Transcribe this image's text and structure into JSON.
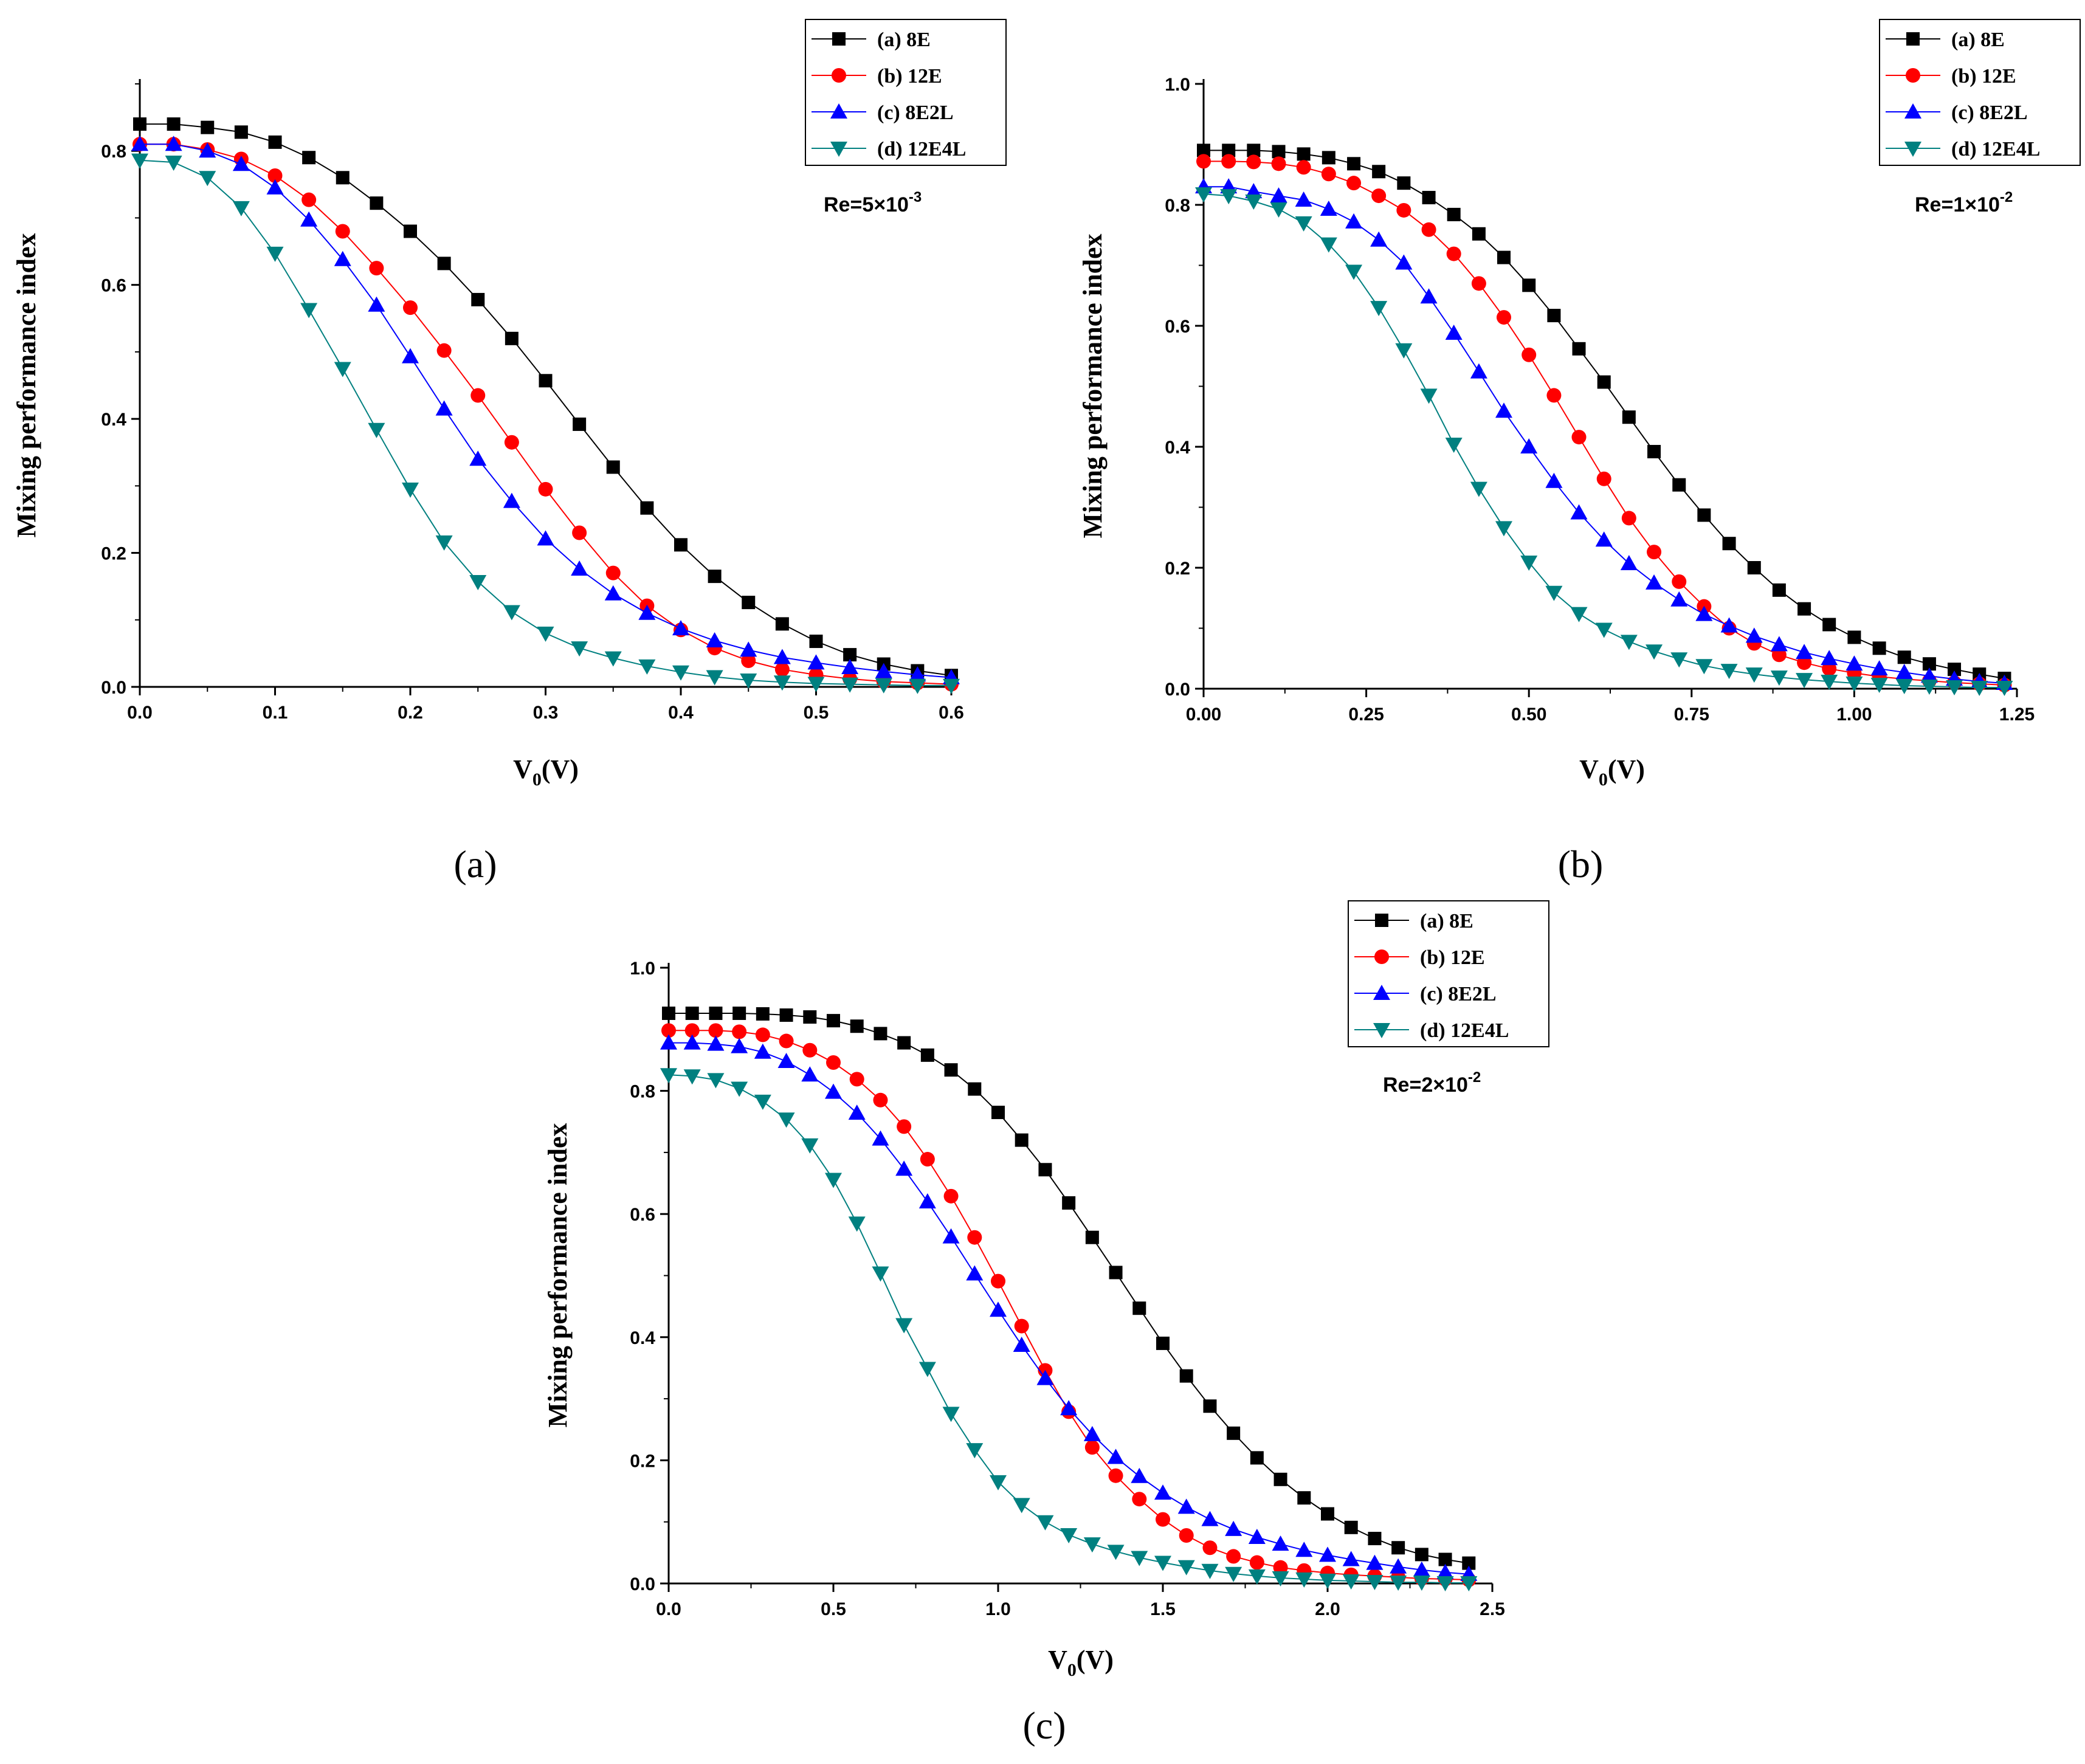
{
  "chart_data": [
    {
      "type": "scatter",
      "panel_label": "(a)",
      "annotation": {
        "prefix": "Re=5",
        "times": "×",
        "base": "10",
        "exponent": "-3"
      },
      "xlabel": {
        "main": "V",
        "sub": "0",
        "unit": "(V)"
      },
      "ylabel": "Mixing performance index",
      "xlim": [
        0,
        0.6
      ],
      "ylim": [
        0,
        0.9
      ],
      "xticks": [
        0,
        0.1,
        0.2,
        0.3,
        0.4,
        0.5,
        0.6
      ],
      "xtick_labels": [
        "0.0",
        "0.1",
        "0.2",
        "0.3",
        "0.4",
        "0.5",
        "0.6"
      ],
      "yticks": [
        0,
        0.2,
        0.4,
        0.6,
        0.8
      ],
      "ytick_labels": [
        "0.0",
        "0.2",
        "0.4",
        "0.6",
        "0.8"
      ],
      "legend_position": "top-right",
      "grid": false,
      "x": [
        0,
        0.025,
        0.05,
        0.075,
        0.1,
        0.125,
        0.15,
        0.175,
        0.2,
        0.225,
        0.25,
        0.275,
        0.3,
        0.325,
        0.35,
        0.375,
        0.4,
        0.425,
        0.45,
        0.475,
        0.5,
        0.525,
        0.55,
        0.575,
        0.6
      ],
      "series": [
        {
          "name": "(a) 8E",
          "color": "#000000",
          "marker": "square",
          "values": [
            0.84,
            0.84,
            0.835,
            0.828,
            0.813,
            0.79,
            0.76,
            0.722,
            0.68,
            0.632,
            0.578,
            0.52,
            0.457,
            0.392,
            0.328,
            0.267,
            0.212,
            0.165,
            0.126,
            0.094,
            0.068,
            0.048,
            0.034,
            0.024,
            0.017
          ]
        },
        {
          "name": "(b) 12E",
          "color": "#ff0000",
          "marker": "circle",
          "values": [
            0.81,
            0.81,
            0.802,
            0.788,
            0.763,
            0.727,
            0.68,
            0.625,
            0.566,
            0.502,
            0.435,
            0.365,
            0.295,
            0.23,
            0.17,
            0.121,
            0.085,
            0.058,
            0.039,
            0.026,
            0.018,
            0.012,
            0.008,
            0.006,
            0.004
          ]
        },
        {
          "name": "(c) 8E2L",
          "color": "#0000ff",
          "marker": "triangle-up",
          "values": [
            0.81,
            0.81,
            0.8,
            0.78,
            0.745,
            0.697,
            0.638,
            0.57,
            0.493,
            0.415,
            0.34,
            0.277,
            0.221,
            0.176,
            0.139,
            0.11,
            0.087,
            0.069,
            0.055,
            0.044,
            0.036,
            0.029,
            0.023,
            0.018,
            0.014
          ]
        },
        {
          "name": "(d) 12E4L",
          "color": "#008080",
          "marker": "triangle-down",
          "values": [
            0.786,
            0.783,
            0.76,
            0.715,
            0.647,
            0.563,
            0.475,
            0.384,
            0.295,
            0.216,
            0.157,
            0.112,
            0.08,
            0.058,
            0.043,
            0.031,
            0.022,
            0.015,
            0.01,
            0.007,
            0.005,
            0.004,
            0.003,
            0.002,
            0.002
          ]
        }
      ]
    },
    {
      "type": "scatter",
      "panel_label": "(b)",
      "annotation": {
        "prefix": "Re=1",
        "times": "×",
        "base": "10",
        "exponent": "-2"
      },
      "xlabel": {
        "main": "V",
        "sub": "0",
        "unit": "(V)"
      },
      "ylabel": "Mixing performance index",
      "xlim": [
        0,
        1.25
      ],
      "ylim": [
        0,
        1.0
      ],
      "xticks": [
        0,
        0.25,
        0.5,
        0.75,
        1.0,
        1.25
      ],
      "xtick_labels": [
        "0.00",
        "0.25",
        "0.50",
        "0.75",
        "1.00",
        "1.25"
      ],
      "yticks": [
        0,
        0.2,
        0.4,
        0.6,
        0.8,
        1.0
      ],
      "ytick_labels": [
        "0.0",
        "0.2",
        "0.4",
        "0.6",
        "0.8",
        "1.0"
      ],
      "legend_position": "top-right",
      "grid": false,
      "x": [
        0,
        0.0385,
        0.0769,
        0.1154,
        0.1538,
        0.1923,
        0.2308,
        0.2692,
        0.3077,
        0.3462,
        0.3846,
        0.4231,
        0.4615,
        0.5,
        0.5385,
        0.5769,
        0.6154,
        0.6538,
        0.6923,
        0.7308,
        0.7692,
        0.8077,
        0.8462,
        0.8846,
        0.9231,
        0.9615,
        1.0,
        1.0385,
        1.0769,
        1.1154,
        1.1538,
        1.1923,
        1.2308
      ],
      "series": [
        {
          "name": "(a) 8E",
          "color": "#000000",
          "marker": "square",
          "values": [
            0.89,
            0.89,
            0.89,
            0.888,
            0.884,
            0.878,
            0.868,
            0.855,
            0.836,
            0.812,
            0.784,
            0.752,
            0.713,
            0.667,
            0.617,
            0.562,
            0.507,
            0.449,
            0.392,
            0.337,
            0.287,
            0.24,
            0.2,
            0.163,
            0.132,
            0.106,
            0.085,
            0.067,
            0.052,
            0.041,
            0.032,
            0.024,
            0.017
          ]
        },
        {
          "name": "(b) 12E",
          "color": "#ff0000",
          "marker": "circle",
          "values": [
            0.872,
            0.872,
            0.871,
            0.868,
            0.862,
            0.851,
            0.836,
            0.815,
            0.791,
            0.759,
            0.719,
            0.67,
            0.614,
            0.552,
            0.485,
            0.416,
            0.347,
            0.282,
            0.226,
            0.177,
            0.136,
            0.1,
            0.075,
            0.056,
            0.043,
            0.033,
            0.026,
            0.02,
            0.016,
            0.013,
            0.01,
            0.008,
            0.006
          ]
        },
        {
          "name": "(c) 8E2L",
          "color": "#0000ff",
          "marker": "triangle-up",
          "values": [
            0.83,
            0.83,
            0.822,
            0.815,
            0.808,
            0.793,
            0.772,
            0.742,
            0.704,
            0.648,
            0.588,
            0.524,
            0.459,
            0.4,
            0.343,
            0.291,
            0.246,
            0.207,
            0.175,
            0.147,
            0.123,
            0.104,
            0.087,
            0.073,
            0.06,
            0.05,
            0.041,
            0.033,
            0.027,
            0.021,
            0.016,
            0.012,
            0.009
          ]
        },
        {
          "name": "(d) 12E4L",
          "color": "#008080",
          "marker": "triangle-down",
          "values": [
            0.818,
            0.815,
            0.806,
            0.793,
            0.77,
            0.735,
            0.69,
            0.63,
            0.56,
            0.485,
            0.404,
            0.331,
            0.266,
            0.209,
            0.159,
            0.124,
            0.098,
            0.078,
            0.062,
            0.049,
            0.038,
            0.03,
            0.024,
            0.019,
            0.015,
            0.012,
            0.009,
            0.007,
            0.005,
            0.004,
            0.003,
            0.002,
            0.002
          ]
        }
      ]
    },
    {
      "type": "scatter",
      "panel_label": "(c)",
      "annotation": {
        "prefix": "Re=2",
        "times": "×",
        "base": "10",
        "exponent": "-2"
      },
      "xlabel": {
        "main": "V",
        "sub": "0",
        "unit": "(V)"
      },
      "ylabel": "Mixing performance index",
      "xlim": [
        0,
        2.5
      ],
      "ylim": [
        0,
        1.0
      ],
      "xticks": [
        0,
        0.5,
        1.0,
        1.5,
        2.0,
        2.5
      ],
      "xtick_labels": [
        "0.0",
        "0.5",
        "1.0",
        "1.5",
        "2.0",
        "2.5"
      ],
      "yticks": [
        0,
        0.2,
        0.4,
        0.6,
        0.8,
        1.0
      ],
      "ytick_labels": [
        "0.0",
        "0.2",
        "0.4",
        "0.6",
        "0.8",
        "1.0"
      ],
      "legend_position": "top-right",
      "grid": false,
      "x": [
        0,
        0.0714,
        0.1429,
        0.2143,
        0.2857,
        0.3571,
        0.4286,
        0.5,
        0.5714,
        0.6429,
        0.7143,
        0.7857,
        0.8571,
        0.9286,
        1.0,
        1.0714,
        1.1429,
        1.2143,
        1.2857,
        1.3571,
        1.4286,
        1.5,
        1.5714,
        1.6429,
        1.7143,
        1.7857,
        1.8571,
        1.9286,
        2.0,
        2.0714,
        2.1429,
        2.2143,
        2.2857,
        2.3571,
        2.4286
      ],
      "series": [
        {
          "name": "(a) 8E",
          "color": "#000000",
          "marker": "square",
          "values": [
            0.926,
            0.926,
            0.926,
            0.926,
            0.925,
            0.923,
            0.92,
            0.914,
            0.905,
            0.893,
            0.878,
            0.858,
            0.834,
            0.803,
            0.765,
            0.72,
            0.672,
            0.618,
            0.562,
            0.505,
            0.447,
            0.39,
            0.337,
            0.288,
            0.244,
            0.204,
            0.169,
            0.139,
            0.113,
            0.091,
            0.073,
            0.058,
            0.047,
            0.039,
            0.033
          ]
        },
        {
          "name": "(b) 12E",
          "color": "#ff0000",
          "marker": "circle",
          "values": [
            0.898,
            0.898,
            0.898,
            0.896,
            0.891,
            0.881,
            0.866,
            0.846,
            0.819,
            0.785,
            0.742,
            0.689,
            0.629,
            0.562,
            0.491,
            0.418,
            0.346,
            0.279,
            0.221,
            0.175,
            0.137,
            0.104,
            0.078,
            0.058,
            0.044,
            0.034,
            0.026,
            0.021,
            0.017,
            0.014,
            0.012,
            0.01,
            0.008,
            0.007,
            0.006
          ]
        },
        {
          "name": "(c) 8E2L",
          "color": "#0000ff",
          "marker": "triangle-up",
          "values": [
            0.878,
            0.878,
            0.876,
            0.872,
            0.863,
            0.848,
            0.826,
            0.798,
            0.764,
            0.722,
            0.673,
            0.62,
            0.563,
            0.503,
            0.444,
            0.387,
            0.333,
            0.284,
            0.242,
            0.205,
            0.174,
            0.147,
            0.124,
            0.104,
            0.088,
            0.075,
            0.064,
            0.054,
            0.046,
            0.039,
            0.033,
            0.027,
            0.022,
            0.018,
            0.015
          ]
        },
        {
          "name": "(d) 12E4L",
          "color": "#008080",
          "marker": "triangle-down",
          "values": [
            0.826,
            0.824,
            0.818,
            0.804,
            0.783,
            0.754,
            0.712,
            0.656,
            0.585,
            0.504,
            0.42,
            0.349,
            0.276,
            0.217,
            0.165,
            0.128,
            0.1,
            0.079,
            0.064,
            0.052,
            0.042,
            0.034,
            0.027,
            0.021,
            0.016,
            0.012,
            0.009,
            0.007,
            0.005,
            0.004,
            0.003,
            0.002,
            0.002,
            0.001,
            0.001
          ]
        }
      ]
    }
  ]
}
